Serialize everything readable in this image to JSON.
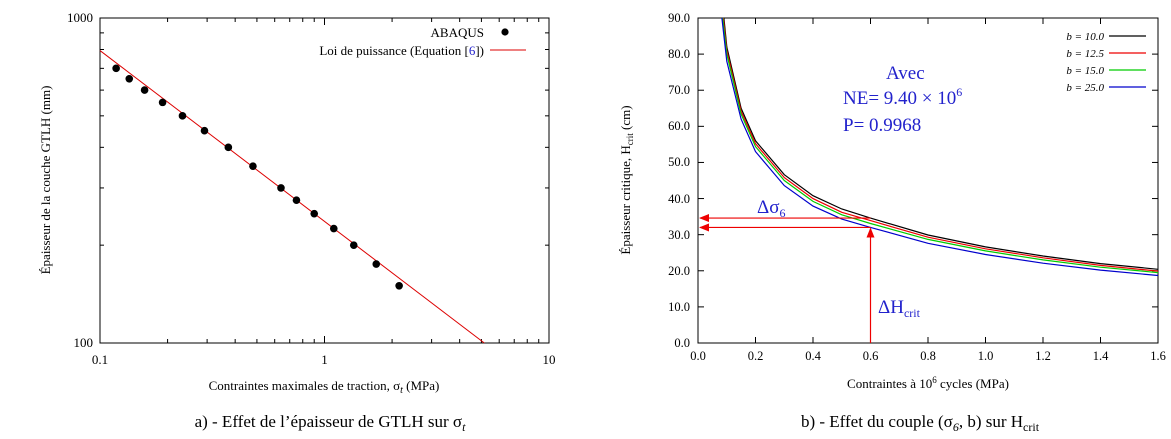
{
  "figure": {
    "caption_a": "a) - Effet de l’épaisseur de GTLH sur σ",
    "caption_a_sub": "t",
    "caption_b_pre": "b) - Effet du couple (σ",
    "caption_b_sub6": "6",
    "caption_b_mid": ", b) sur H",
    "caption_b_subcrit": "crit"
  },
  "chart_data": [
    {
      "type": "scatter",
      "xscale": "log",
      "yscale": "log",
      "xlim": [
        0.1,
        10
      ],
      "ylim": [
        100,
        1000
      ],
      "grid": false,
      "legend_position": "top-right",
      "xlabel": "Contraintes maximales de traction, σ",
      "xlabel_sub": "t",
      "xlabel_unit": " (MPa)",
      "ylabel": "Épaisseur de la couche GTLH (mm)",
      "x_ticks": [
        "0.1",
        "1",
        "10"
      ],
      "y_ticks": [
        "100",
        "1000"
      ],
      "series": [
        {
          "name": "ABAQUS",
          "kind": "points",
          "color": "#000000",
          "x": [
            0.118,
            0.135,
            0.158,
            0.19,
            0.233,
            0.292,
            0.373,
            0.48,
            0.64,
            0.75,
            0.9,
            1.1,
            1.35,
            1.7,
            2.15
          ],
          "y": [
            700,
            650,
            600,
            550,
            500,
            450,
            400,
            350,
            300,
            275,
            250,
            225,
            200,
            175,
            150
          ]
        },
        {
          "name_pre": "Loi de puissance (Equation [",
          "name_ref": "6",
          "name_post": "])",
          "kind": "line",
          "color": "#dd0000",
          "x": [
            0.1,
            5.15
          ],
          "y": [
            794,
            100
          ]
        }
      ]
    },
    {
      "type": "line",
      "xlim": [
        0.0,
        1.6
      ],
      "ylim": [
        0.0,
        90.0
      ],
      "grid": false,
      "legend_position": "top-right",
      "xlabel_pre": "Contraintes à 10",
      "xlabel_sup": "6",
      "xlabel_post": " cycles (MPa)",
      "ylabel_pre": "Épaisseur critique, H",
      "ylabel_sub": "crit",
      "ylabel_post": " (cm)",
      "x_ticks": [
        "0.0",
        "0.2",
        "0.4",
        "0.6",
        "0.8",
        "1.0",
        "1.2",
        "1.4",
        "1.6"
      ],
      "y_ticks": [
        "0.0",
        "10.0",
        "20.0",
        "30.0",
        "40.0",
        "50.0",
        "60.0",
        "70.0",
        "80.0",
        "90.0"
      ],
      "series": [
        {
          "name": "b = 10.0",
          "color": "#000000",
          "x": [
            0.09,
            0.1,
            0.15,
            0.2,
            0.3,
            0.4,
            0.5,
            0.6,
            0.8,
            1.0,
            1.2,
            1.4,
            1.6
          ],
          "y": [
            90,
            82,
            65,
            56,
            46.6,
            40.8,
            37.1,
            34.6,
            29.9,
            26.6,
            24.1,
            22.0,
            20.4
          ]
        },
        {
          "name": "b = 12.5",
          "color": "#ee0000",
          "x": [
            0.088,
            0.1,
            0.15,
            0.2,
            0.3,
            0.4,
            0.5,
            0.6,
            0.8,
            1.0,
            1.2,
            1.4,
            1.6
          ],
          "y": [
            90,
            81,
            64.2,
            55.2,
            45.8,
            40.0,
            36.2,
            33.9,
            29.3,
            26.1,
            23.6,
            21.5,
            19.9
          ]
        },
        {
          "name": "b = 15.0",
          "color": "#00cc00",
          "x": [
            0.086,
            0.1,
            0.15,
            0.2,
            0.3,
            0.4,
            0.5,
            0.6,
            0.8,
            1.0,
            1.2,
            1.4,
            1.6
          ],
          "y": [
            90,
            80,
            63.4,
            54.4,
            45.0,
            39.2,
            35.5,
            33.1,
            28.7,
            25.5,
            23.0,
            21.0,
            19.5
          ]
        },
        {
          "name": "b = 25.0",
          "color": "#0000cc",
          "x": [
            0.083,
            0.1,
            0.15,
            0.2,
            0.3,
            0.4,
            0.5,
            0.6,
            0.8,
            1.0,
            1.2,
            1.4,
            1.6
          ],
          "y": [
            90,
            78,
            62.0,
            53.0,
            43.6,
            37.9,
            34.3,
            32.0,
            27.6,
            24.5,
            22.1,
            20.2,
            18.7
          ]
        }
      ],
      "annotation": {
        "line1": "Avec",
        "ne_pre": "NE= 9.40 × 10",
        "ne_sup": "6",
        "p_line": "P= 0.9968",
        "color": "#2222cc"
      },
      "markers": {
        "sigma_x": 0.6,
        "h_upper": 34.6,
        "h_lower": 32.0,
        "delta_sigma_label": "Δσ",
        "delta_sigma_sub": "6",
        "delta_h_label": "ΔH",
        "delta_h_sub": "crit",
        "color": "#ee0000"
      }
    }
  ]
}
